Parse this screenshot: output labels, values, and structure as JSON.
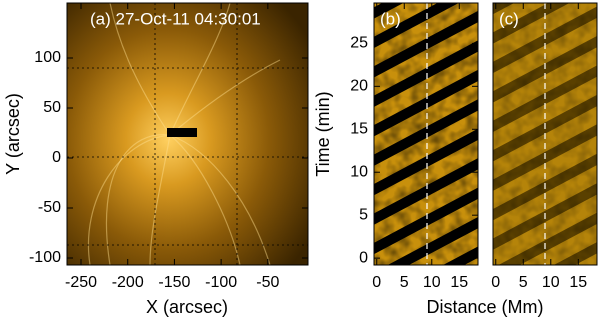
{
  "chart_data": [
    {
      "type": "image",
      "title": "(a) 27-Oct-11 04:30:01",
      "xlabel": "X (arcsec)",
      "ylabel": "Y (arcsec)",
      "xlim": [
        -265,
        -7
      ],
      "ylim": [
        -107,
        155
      ],
      "xticks": [
        -250,
        -200,
        -150,
        -100,
        -50
      ],
      "yticks": [
        -100,
        -50,
        0,
        50,
        100
      ]
    },
    {
      "type": "image",
      "title": "(b)",
      "xlabel": "Distance (Mm)",
      "ylabel": "Time (min)",
      "xlim": [
        -0.5,
        18.4
      ],
      "ylim": [
        -0.8,
        29.7
      ],
      "xticks": [
        0,
        5,
        10,
        15
      ],
      "yticks": [
        0,
        5,
        10,
        15,
        20,
        25
      ]
    },
    {
      "type": "image",
      "title": "(c)",
      "xlim": [
        -0.5,
        18.4
      ],
      "ylim": [
        -0.8,
        29.7
      ],
      "xticks": [
        0,
        5,
        10,
        15
      ]
    }
  ]
}
